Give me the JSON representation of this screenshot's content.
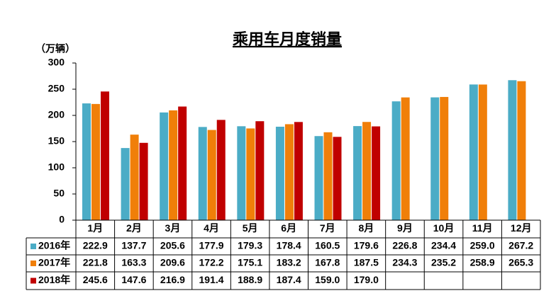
{
  "chart_data": {
    "type": "bar",
    "title": "乘用车月度销量",
    "y_label": "（万辆）",
    "categories": [
      "1月",
      "2月",
      "3月",
      "4月",
      "5月",
      "6月",
      "7月",
      "8月",
      "9月",
      "10月",
      "11月",
      "12月"
    ],
    "series": [
      {
        "name": "2016年",
        "color": "#4bacc6",
        "values": [
          222.9,
          137.7,
          205.6,
          177.9,
          179.3,
          178.4,
          160.5,
          179.6,
          226.8,
          234.4,
          259.0,
          267.2
        ],
        "value_labels": [
          "222.9",
          "137.7",
          "205.6",
          "177.9",
          "179.3",
          "178.4",
          "160.5",
          "179.6",
          "226.8",
          "234.4",
          "259.0",
          "267.2"
        ]
      },
      {
        "name": "2017年",
        "color": "#f07f09",
        "values": [
          221.8,
          163.3,
          209.6,
          172.2,
          175.1,
          183.2,
          167.8,
          187.5,
          234.3,
          235.2,
          258.9,
          265.3
        ],
        "value_labels": [
          "221.8",
          "163.3",
          "209.6",
          "172.2",
          "175.1",
          "183.2",
          "167.8",
          "187.5",
          "234.3",
          "235.2",
          "258.9",
          "265.3"
        ]
      },
      {
        "name": "2018年",
        "color": "#c00000",
        "values": [
          245.6,
          147.6,
          216.9,
          191.4,
          188.9,
          187.4,
          159.0,
          179.0,
          null,
          null,
          null,
          null
        ],
        "value_labels": [
          "245.6",
          "147.6",
          "216.9",
          "191.4",
          "188.9",
          "187.4",
          "159.0",
          "179.0",
          null,
          null,
          null,
          null
        ]
      }
    ],
    "ylim": [
      0,
      300
    ],
    "yticks": [
      0,
      50,
      100,
      150,
      200,
      250,
      300
    ]
  }
}
